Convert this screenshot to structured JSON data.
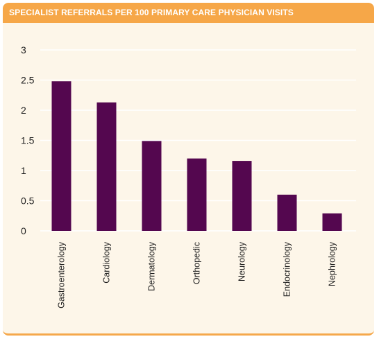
{
  "chart_data": {
    "type": "bar",
    "title": "SPECIALIST REFERRALS PER 100 PRIMARY CARE PHYSICIAN VISITS",
    "categories": [
      "Gastroenterology",
      "Cardiology",
      "Dermatology",
      "Orthopedic",
      "Neurology",
      "Endocrinology",
      "Nephrology"
    ],
    "values": [
      2.48,
      2.13,
      1.49,
      1.2,
      1.16,
      0.6,
      0.29
    ],
    "yticks": [
      "0",
      "0.5",
      "1",
      "1.5",
      "2",
      "2.5",
      "3"
    ],
    "ylim": [
      0,
      3
    ],
    "xlabel": "",
    "ylabel": "",
    "grid": true,
    "colors": {
      "bar": "#54074f",
      "header": "#f6a748",
      "background": "#fdf6e9",
      "grid": "#ffffff"
    }
  }
}
